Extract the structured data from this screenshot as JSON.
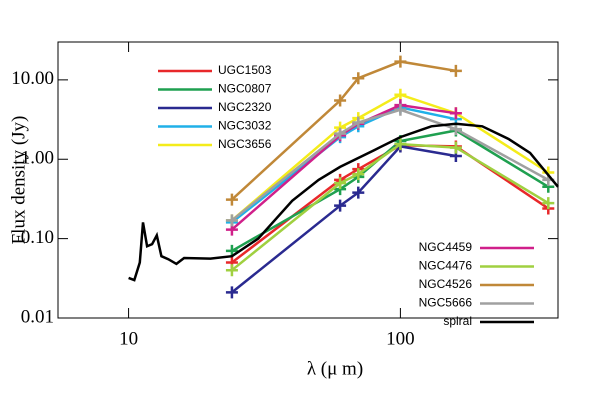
{
  "chart_data": {
    "type": "line",
    "log_x": true,
    "log_y": true,
    "xlabel": "λ (μ m)",
    "ylabel": "Flux density (Jy)",
    "xlim": [
      5.5,
      380
    ],
    "ylim": [
      0.01,
      30
    ],
    "xticks": [
      10,
      100
    ],
    "yticks": [
      0.01,
      {
        "value": 0.1,
        "label": "0.10"
      },
      {
        "value": 1,
        "label": "1.00"
      },
      {
        "value": 10,
        "label": "10.00"
      }
    ],
    "x": [
      24,
      60,
      70,
      100,
      160,
      350
    ],
    "series": [
      {
        "name": "UGC1503",
        "color": "#e8282a",
        "values": [
          0.05,
          0.55,
          0.75,
          1.5,
          1.45,
          0.24
        ]
      },
      {
        "name": "NGC0807",
        "color": "#1fa050",
        "values": [
          0.07,
          0.42,
          0.6,
          1.7,
          2.3,
          0.45
        ]
      },
      {
        "name": "NGC2320",
        "color": "#2a2a90",
        "values": [
          0.021,
          0.26,
          0.38,
          1.45,
          1.1,
          null
        ]
      },
      {
        "name": "NGC3032",
        "color": "#20b0e8",
        "values": [
          0.16,
          1.9,
          2.6,
          4.5,
          3.2,
          null
        ]
      },
      {
        "name": "NGC3656",
        "color": "#f4ec1a",
        "values": [
          0.17,
          2.5,
          3.3,
          6.5,
          3.8,
          0.68
        ]
      },
      {
        "name": "NGC4459",
        "color": "#d0208a",
        "values": [
          0.13,
          2.0,
          2.8,
          4.8,
          3.8,
          null
        ]
      },
      {
        "name": "NGC4476",
        "color": "#a0d040",
        "values": [
          0.04,
          0.5,
          0.65,
          1.55,
          1.4,
          0.28
        ]
      },
      {
        "name": "NGC4526",
        "color": "#c08838",
        "values": [
          0.31,
          5.5,
          10.5,
          17,
          13,
          null
        ]
      },
      {
        "name": "NGC5666",
        "color": "#a0a0a0",
        "values": [
          0.17,
          2.1,
          2.9,
          4.2,
          2.4,
          0.55
        ]
      },
      {
        "name": "spiral",
        "color": "#000000",
        "x": [
          10,
          10.5,
          11,
          11.3,
          11.7,
          12.2,
          12.7,
          13.2,
          14,
          15,
          16,
          20,
          24,
          30,
          40,
          50,
          60,
          80,
          100,
          130,
          160,
          200,
          250,
          300,
          380
        ],
        "values": [
          0.032,
          0.03,
          0.05,
          0.16,
          0.08,
          0.085,
          0.11,
          0.06,
          0.055,
          0.048,
          0.057,
          0.056,
          0.06,
          0.1,
          0.3,
          0.55,
          0.8,
          1.3,
          1.9,
          2.6,
          2.8,
          2.6,
          1.8,
          1.2,
          0.45
        ]
      }
    ]
  }
}
